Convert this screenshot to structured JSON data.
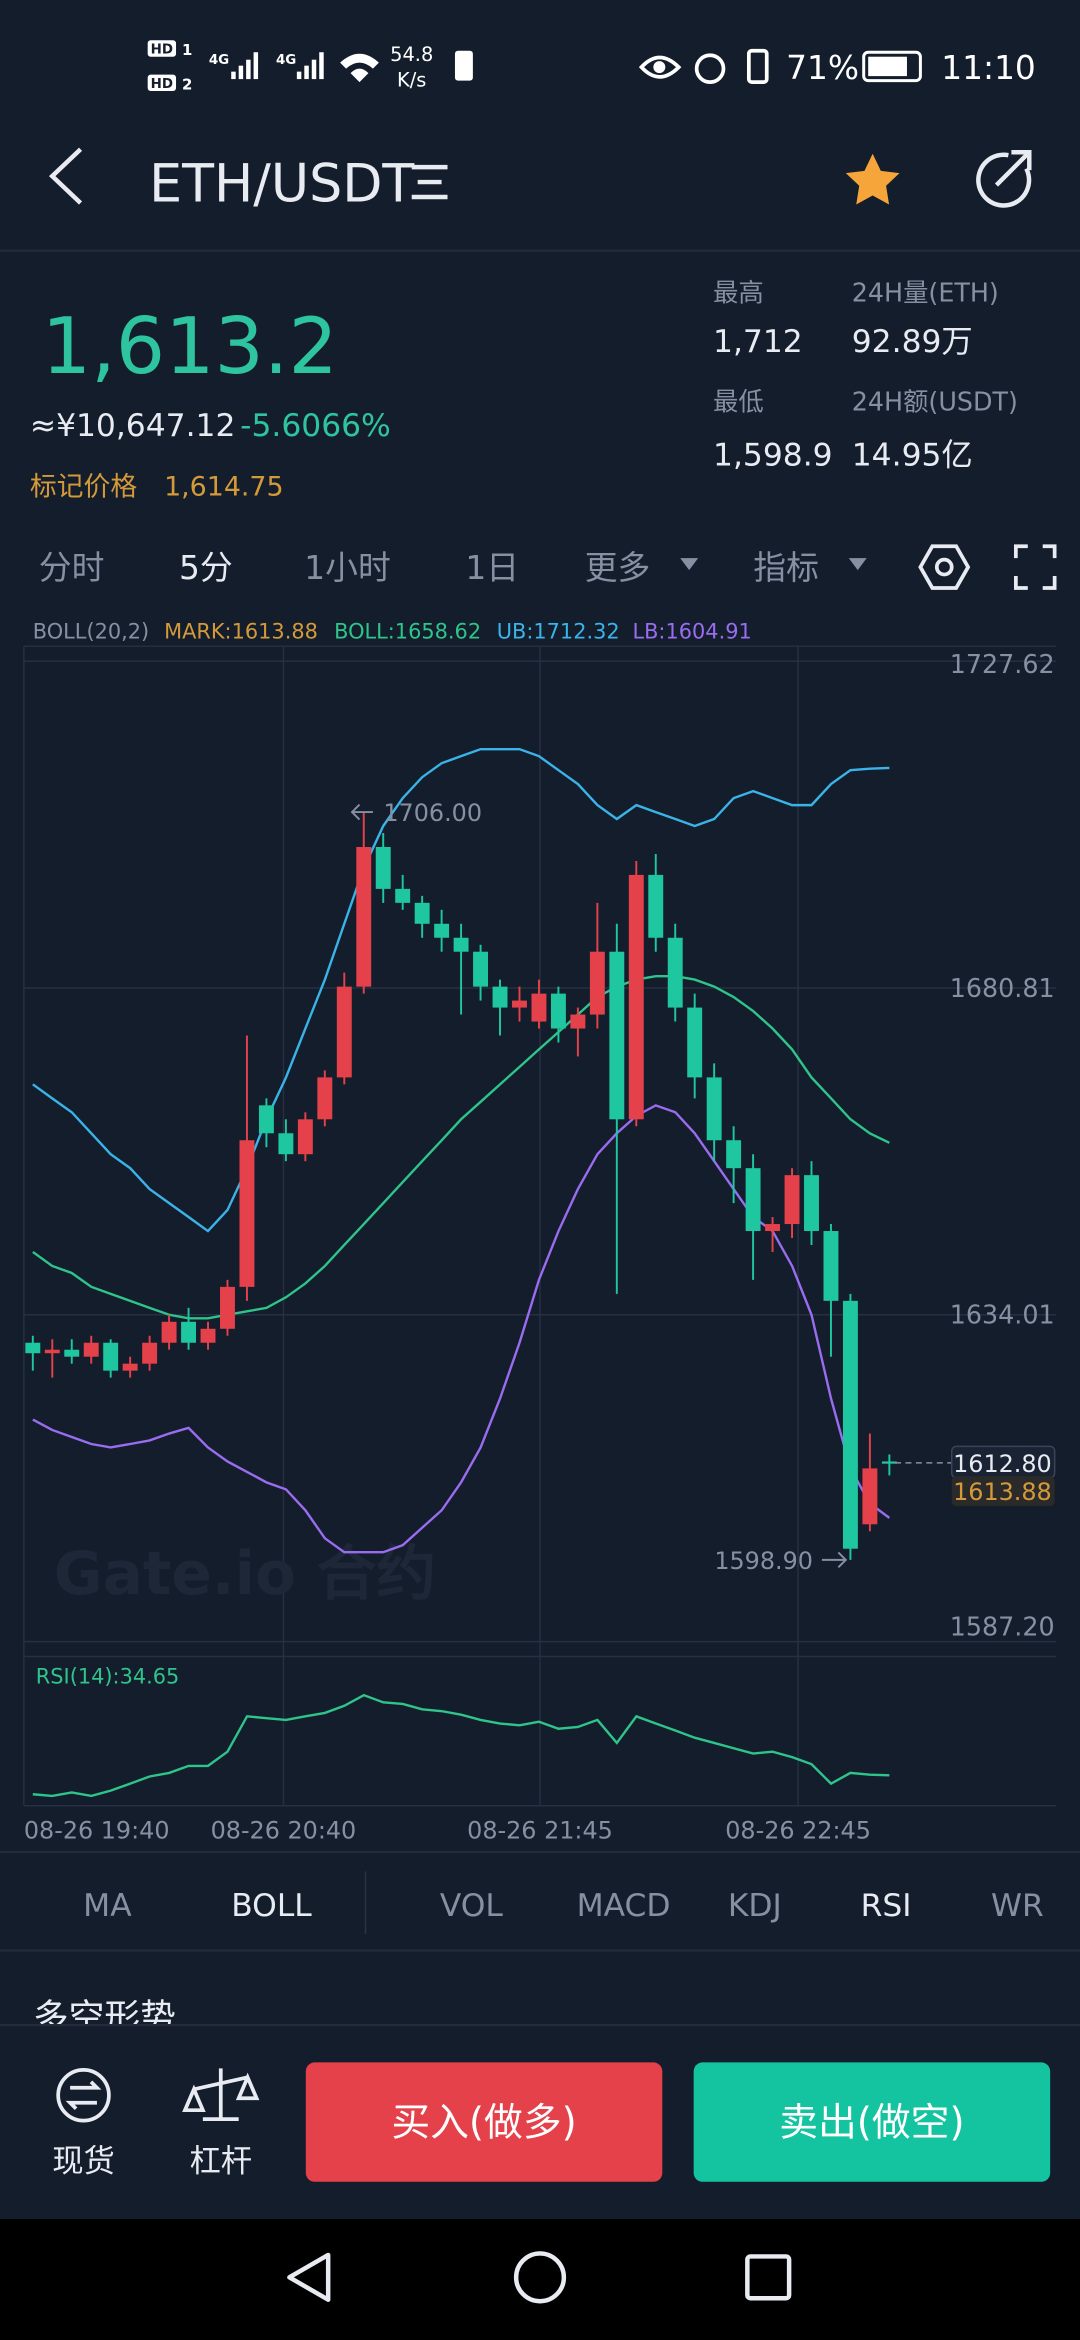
{
  "status_bar": {
    "sims": [
      {
        "badge": "HD",
        "slot": "1"
      },
      {
        "badge": "HD",
        "slot": "2"
      }
    ],
    "networks": [
      "4G",
      "4G"
    ],
    "speed": "54.8",
    "speed_unit": "K/s",
    "battery": "71%",
    "time": "11:10"
  },
  "header": {
    "pair": "ETH/USDT"
  },
  "ticker": {
    "price": "1,613.2",
    "cny": "≈¥10,647.12",
    "change": "-5.6066%",
    "mark_label": "标记价格",
    "mark_price": "1,614.75",
    "high_label": "最高",
    "high": "1,712",
    "volume_label": "24H量(ETH)",
    "volume": "92.89万",
    "low_label": "最低",
    "low": "1,598.9",
    "turnover_label": "24H额(USDT)",
    "turnover": "14.95亿"
  },
  "intervals": [
    "分时",
    "5分",
    "1小时",
    "1日",
    "更多",
    "指标"
  ],
  "indicator_legend": {
    "name": "BOLL(20,2)",
    "mark": "MARK:1613.88",
    "boll": "BOLL:1658.62",
    "ub": "UB:1712.32",
    "lb": "LB:1604.91"
  },
  "kline": {
    "type": "candlestick",
    "up_color": "#e5414a",
    "down_color": "#1fc7a0",
    "ylim": [
      1587.2,
      1727.62
    ],
    "yticks": [
      1727.62,
      1680.81,
      1634.01,
      1587.2
    ],
    "ytick_labels": [
      {
        "value": 1587.2,
        "label": "1587.20"
      }
    ],
    "candles": [
      [
        1630,
        1631,
        1626,
        1628.5
      ],
      [
        1628.5,
        1630.5,
        1625,
        1629
      ],
      [
        1629,
        1630.5,
        1627,
        1628
      ],
      [
        1628,
        1631,
        1627,
        1630
      ],
      [
        1630,
        1630.5,
        1625,
        1626
      ],
      [
        1626,
        1628,
        1625,
        1627
      ],
      [
        1627,
        1631,
        1626,
        1630
      ],
      [
        1630,
        1634,
        1629,
        1633
      ],
      [
        1633,
        1635,
        1629,
        1630
      ],
      [
        1630,
        1633,
        1629,
        1632
      ],
      [
        1632,
        1639,
        1631,
        1638
      ],
      [
        1638,
        1674,
        1636,
        1659
      ],
      [
        1664,
        1665,
        1658,
        1660
      ],
      [
        1660,
        1662,
        1656,
        1657
      ],
      [
        1657,
        1663,
        1656,
        1662
      ],
      [
        1662,
        1669,
        1661,
        1668
      ],
      [
        1668,
        1683,
        1667,
        1681
      ],
      [
        1681,
        1706,
        1680,
        1701
      ],
      [
        1701,
        1703,
        1693,
        1695
      ],
      [
        1695,
        1697,
        1692,
        1693
      ],
      [
        1693,
        1694,
        1688,
        1690
      ],
      [
        1690,
        1692,
        1686,
        1688
      ],
      [
        1688,
        1690,
        1677,
        1686
      ],
      [
        1686,
        1687,
        1679,
        1681
      ],
      [
        1681,
        1682,
        1674,
        1678
      ],
      [
        1678,
        1681,
        1676,
        1679
      ],
      [
        1676,
        1682,
        1675,
        1680
      ],
      [
        1680,
        1681,
        1673,
        1675
      ],
      [
        1675,
        1678,
        1671,
        1677
      ],
      [
        1677,
        1693,
        1675,
        1686
      ],
      [
        1686,
        1690,
        1637,
        1662
      ],
      [
        1662,
        1699,
        1661,
        1697
      ],
      [
        1697,
        1700,
        1686,
        1688
      ],
      [
        1688,
        1690,
        1676,
        1678
      ],
      [
        1678,
        1680,
        1665,
        1668
      ],
      [
        1668,
        1670,
        1656,
        1659
      ],
      [
        1659,
        1661,
        1650,
        1655
      ],
      [
        1655,
        1657,
        1639,
        1646
      ],
      [
        1646,
        1648,
        1643,
        1647
      ],
      [
        1647,
        1655,
        1645,
        1654
      ],
      [
        1654,
        1656,
        1644,
        1646
      ],
      [
        1646,
        1647,
        1628,
        1636
      ],
      [
        1636,
        1637,
        1598.9,
        1600.5
      ],
      [
        1604,
        1617,
        1603,
        1612
      ],
      [
        1613,
        1614,
        1611,
        1612.8
      ]
    ],
    "ub": [
      1667,
      1665,
      1663,
      1660,
      1657,
      1655,
      1652,
      1650,
      1648,
      1646,
      1649,
      1655,
      1662,
      1668,
      1675,
      1682,
      1690,
      1698,
      1704,
      1708,
      1711,
      1713,
      1714,
      1715,
      1715,
      1715,
      1714,
      1712,
      1710,
      1707,
      1705,
      1707,
      1706,
      1705,
      1704,
      1705,
      1708,
      1709,
      1708,
      1707,
      1707,
      1710,
      1712,
      1712.2,
      1712.32
    ],
    "mid": [
      1643,
      1641,
      1640,
      1638,
      1637,
      1636,
      1635,
      1634,
      1633.5,
      1633.5,
      1634,
      1634.5,
      1635,
      1636.5,
      1638.5,
      1641,
      1644,
      1647,
      1650,
      1653,
      1656,
      1659,
      1662,
      1664.5,
      1667,
      1669.5,
      1672,
      1674.5,
      1677,
      1679.5,
      1681,
      1682,
      1682.5,
      1682.5,
      1682,
      1681,
      1679.5,
      1677.5,
      1675,
      1672,
      1668,
      1665,
      1662,
      1660,
      1658.62
    ],
    "lb": [
      1619,
      1617.5,
      1616.5,
      1615.5,
      1615,
      1615.5,
      1616,
      1617,
      1617.8,
      1615,
      1613,
      1611.5,
      1610,
      1609,
      1606,
      1602,
      1600,
      1600,
      1600,
      1601,
      1603.5,
      1606,
      1610,
      1615,
      1622,
      1630,
      1639,
      1646,
      1652,
      1657,
      1660,
      1662.5,
      1664,
      1663,
      1660,
      1656,
      1652,
      1648,
      1646,
      1641,
      1634,
      1622,
      1612,
      1607,
      1604.91
    ],
    "high_marker": {
      "value": 1706,
      "label": "1706.00"
    },
    "low_marker": {
      "value": 1598.9,
      "label": "1598.90"
    },
    "last_price": {
      "value": 1612.8,
      "label": "1612.80"
    },
    "mark_price": {
      "value": 1613.88,
      "label": "1613.88"
    },
    "watermark": "Gate.io 合约"
  },
  "rsi": {
    "label": "RSI(14):34.65",
    "ylim": [
      20,
      85
    ],
    "values": [
      24,
      23,
      25,
      23,
      26,
      30,
      34,
      36,
      40,
      40,
      48,
      68,
      67,
      66,
      68,
      70,
      74,
      80,
      76,
      75,
      72,
      71,
      69,
      66,
      64,
      63,
      65,
      61,
      62,
      66,
      53,
      68,
      64,
      60,
      56,
      53,
      50,
      47,
      48,
      45,
      41,
      30,
      36,
      35,
      34.65
    ]
  },
  "time_labels": [
    "08-26 19:40",
    "08-26 20:40",
    "08-26 21:45",
    "08-26 22:45"
  ],
  "indicator_tabs": [
    "MA",
    "BOLL",
    "VOL",
    "MACD",
    "KDJ",
    "RSI",
    "WR"
  ],
  "section_title": "多空形势",
  "bottom_bar": {
    "spot": "现货",
    "leverage": "杠杆",
    "buy": "买入(做多)",
    "sell": "卖出(做空)"
  }
}
